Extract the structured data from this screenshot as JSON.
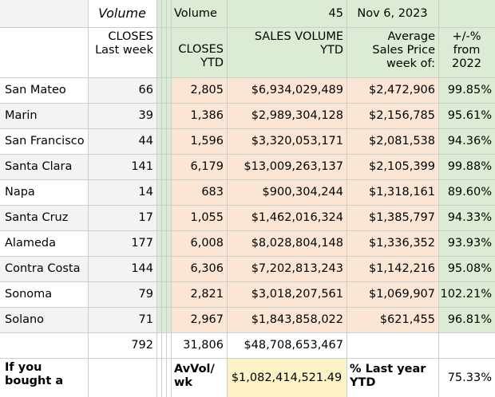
{
  "colors": {
    "row_even": "#f3f3f3",
    "row_odd": "#ffffff",
    "ytd_fill": "#fbe6d6",
    "green_fill": "#dcecd4",
    "avvol_fill": "#fdf2c7",
    "gridline": "#c9cfc9"
  },
  "top_row": {
    "volume_italic": "Volume",
    "volume": "Volume",
    "week_number": "45",
    "date": "Nov 6, 2023"
  },
  "headers": {
    "closes_last_week": "CLOSES Last week",
    "closes_ytd": "CLOSES YTD",
    "sales_volume_ytd": "SALES VOLUME YTD",
    "avg_sales_price": "Average Sales Price week of:",
    "pct_from_2022": "+/-% from 2022"
  },
  "rows": [
    {
      "county": "San Mateo",
      "closes_week": "66",
      "closes_ytd": "2,805",
      "sales_volume": "$6,934,029,489",
      "avg_price": "$2,472,906",
      "pct": "99.85%"
    },
    {
      "county": "Marin",
      "closes_week": "39",
      "closes_ytd": "1,386",
      "sales_volume": "$2,989,304,128",
      "avg_price": "$2,156,785",
      "pct": "95.61%"
    },
    {
      "county": "San Francisco",
      "closes_week": "44",
      "closes_ytd": "1,596",
      "sales_volume": "$3,320,053,171",
      "avg_price": "$2,081,538",
      "pct": "94.36%"
    },
    {
      "county": "Santa Clara",
      "closes_week": "141",
      "closes_ytd": "6,179",
      "sales_volume": "$13,009,263,137",
      "avg_price": "$2,105,399",
      "pct": "99.88%"
    },
    {
      "county": "Napa",
      "closes_week": "14",
      "closes_ytd": "683",
      "sales_volume": "$900,304,244",
      "avg_price": "$1,318,161",
      "pct": "89.60%"
    },
    {
      "county": "Santa Cruz",
      "closes_week": "17",
      "closes_ytd": "1,055",
      "sales_volume": "$1,462,016,324",
      "avg_price": "$1,385,797",
      "pct": "94.33%"
    },
    {
      "county": "Alameda",
      "closes_week": "177",
      "closes_ytd": "6,008",
      "sales_volume": "$8,028,804,148",
      "avg_price": "$1,336,352",
      "pct": "93.93%"
    },
    {
      "county": "Contra Costa",
      "closes_week": "144",
      "closes_ytd": "6,306",
      "sales_volume": "$7,202,813,243",
      "avg_price": "$1,142,216",
      "pct": "95.08%"
    },
    {
      "county": "Sonoma",
      "closes_week": "79",
      "closes_ytd": "2,821",
      "sales_volume": "$3,018,207,561",
      "avg_price": "$1,069,907",
      "pct": "102.21%"
    },
    {
      "county": "Solano",
      "closes_week": "71",
      "closes_ytd": "2,967",
      "sales_volume": "$1,843,858,022",
      "avg_price": "$621,455",
      "pct": "96.81%"
    }
  ],
  "totals": {
    "closes_week": "792",
    "closes_ytd": "31,806",
    "sales_volume": "$48,708,653,467"
  },
  "footer": {
    "if_you_bought": "If you bought a",
    "avvol_label": "AvVol/ wk",
    "avvol_value": "$1,082,414,521.49",
    "pct_last_year_label": "% Last year YTD",
    "pct_last_year_value": "75.33%"
  }
}
